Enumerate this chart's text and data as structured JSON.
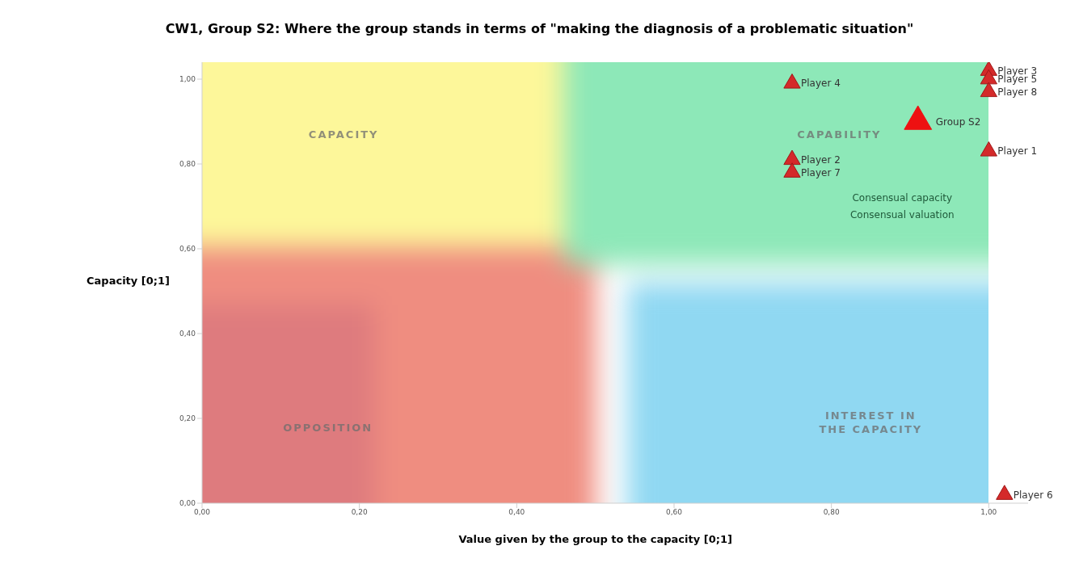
{
  "chart_data": {
    "type": "scatter",
    "title": "CW1, Group S2: Where the group stands in terms of \"making the diagnosis of a problematic situation\"",
    "xlabel": "Value given by the group to the  capacity [0;1]",
    "ylabel": "Capacity [0;1]",
    "xlim": [
      0,
      1.05
    ],
    "ylim": [
      0,
      1.04
    ],
    "xticks": [
      {
        "value": 0,
        "label": "0,00"
      },
      {
        "value": 0.2,
        "label": "0,20"
      },
      {
        "value": 0.4,
        "label": "0,40"
      },
      {
        "value": 0.6,
        "label": "0,60"
      },
      {
        "value": 0.8,
        "label": "0,80"
      },
      {
        "value": 1,
        "label": "1,00"
      }
    ],
    "yticks": [
      {
        "value": 0,
        "label": "0,00"
      },
      {
        "value": 0.2,
        "label": "0,20"
      },
      {
        "value": 0.4,
        "label": "0,40"
      },
      {
        "value": 0.6,
        "label": "0,60"
      },
      {
        "value": 0.8,
        "label": "0,80"
      },
      {
        "value": 1,
        "label": "1,00"
      }
    ],
    "marker": "triangle",
    "legend": false,
    "grid": false,
    "annotations": [
      "CAPACITY",
      "CAPABILITY",
      "OPPOSITION",
      "INTEREST IN THE CAPACITY",
      "Consensual capacity",
      "Consensual valuation"
    ],
    "series": [
      {
        "name": "Group S2",
        "color": "#ee1111",
        "x": [
          0.91
        ],
        "values": [
          0.9
        ]
      },
      {
        "name": "Player 1",
        "color": "#d42a2a",
        "x": [
          1.0
        ],
        "values": [
          0.83
        ]
      },
      {
        "name": "Player 2",
        "color": "#d42a2a",
        "x": [
          0.75
        ],
        "values": [
          0.81
        ]
      },
      {
        "name": "Player 3",
        "color": "#d42a2a",
        "x": [
          1.0
        ],
        "values": [
          1.02
        ]
      },
      {
        "name": "Player 4",
        "color": "#d42a2a",
        "x": [
          0.75
        ],
        "values": [
          0.99
        ]
      },
      {
        "name": "Player 5",
        "color": "#d42a2a",
        "x": [
          1.0
        ],
        "values": [
          1.0
        ]
      },
      {
        "name": "Player 6",
        "color": "#d42a2a",
        "x": [
          1.02
        ],
        "values": [
          0.02
        ]
      },
      {
        "name": "Player 7",
        "color": "#d42a2a",
        "x": [
          0.75
        ],
        "values": [
          0.78
        ]
      },
      {
        "name": "Player 8",
        "color": "#d42a2a",
        "x": [
          1.0
        ],
        "values": [
          0.97
        ]
      }
    ]
  }
}
